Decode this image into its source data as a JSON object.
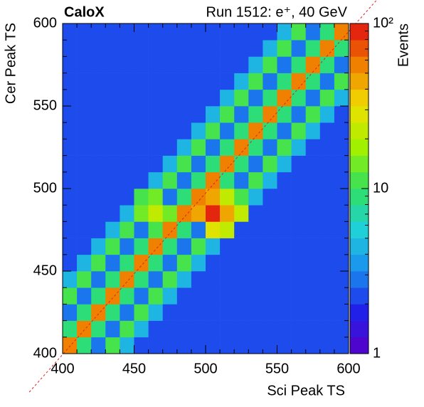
{
  "chart_data": {
    "type": "heatmap",
    "title": "CaloX",
    "subtitle": "Run 1512: e⁺, 40 GeV",
    "xlabel": "Sci Peak TS",
    "ylabel": "Cer Peak TS",
    "zlabel": "Events",
    "xlim": [
      400,
      600
    ],
    "ylim": [
      400,
      600
    ],
    "xticks": [
      400,
      450,
      500,
      550,
      600
    ],
    "yticks": [
      400,
      450,
      500,
      550,
      600
    ],
    "zlim": [
      1,
      100
    ],
    "zscale": "log",
    "zticks": [
      1,
      10,
      {
        "value": 100,
        "label": "10²"
      }
    ],
    "colorscale": [
      "#5a00c8",
      "#2020e8",
      "#1a8cf0",
      "#20d0d8",
      "#30e060",
      "#a0f000",
      "#f0e000",
      "#f08000",
      "#e01010"
    ],
    "xbins": [
      400,
      410,
      420,
      430,
      440,
      450,
      460,
      470,
      480,
      490,
      500,
      510,
      520,
      530,
      540,
      550,
      560,
      570,
      580,
      590,
      600
    ],
    "ybins": [
      400,
      410,
      420,
      430,
      440,
      450,
      460,
      470,
      480,
      490,
      500,
      510,
      520,
      530,
      540,
      550,
      560,
      570,
      580,
      590,
      600
    ],
    "z": [
      [
        60,
        8,
        3,
        12,
        5,
        2,
        2,
        2,
        2,
        2,
        2,
        2,
        2,
        2,
        2,
        2,
        2,
        2,
        2,
        2
      ],
      [
        8,
        60,
        8,
        3,
        12,
        5,
        2,
        2,
        2,
        2,
        2,
        2,
        2,
        2,
        2,
        2,
        2,
        2,
        2,
        2
      ],
      [
        3,
        8,
        60,
        8,
        3,
        12,
        5,
        2,
        2,
        2,
        2,
        2,
        2,
        2,
        2,
        2,
        2,
        2,
        2,
        2
      ],
      [
        12,
        3,
        8,
        60,
        8,
        3,
        12,
        5,
        2,
        2,
        2,
        2,
        2,
        2,
        2,
        2,
        2,
        2,
        2,
        2
      ],
      [
        5,
        12,
        3,
        8,
        60,
        8,
        3,
        12,
        5,
        2,
        2,
        2,
        2,
        2,
        2,
        2,
        2,
        2,
        2,
        2
      ],
      [
        2,
        5,
        12,
        3,
        8,
        60,
        8,
        3,
        12,
        5,
        2,
        2,
        2,
        2,
        2,
        2,
        2,
        2,
        2,
        2
      ],
      [
        2,
        2,
        5,
        12,
        3,
        8,
        60,
        8,
        3,
        12,
        5,
        2,
        2,
        2,
        2,
        2,
        2,
        2,
        2,
        2
      ],
      [
        2,
        2,
        2,
        5,
        12,
        3,
        12,
        60,
        8,
        3,
        30,
        25,
        2,
        2,
        2,
        2,
        2,
        2,
        2,
        2
      ],
      [
        2,
        2,
        2,
        2,
        5,
        15,
        20,
        15,
        60,
        40,
        80,
        50,
        20,
        2,
        2,
        2,
        2,
        2,
        2,
        2
      ],
      [
        2,
        2,
        2,
        2,
        2,
        12,
        15,
        3,
        8,
        60,
        50,
        20,
        12,
        5,
        2,
        2,
        2,
        2,
        2,
        2
      ],
      [
        2,
        2,
        2,
        2,
        2,
        2,
        5,
        12,
        3,
        8,
        60,
        8,
        3,
        12,
        5,
        2,
        2,
        2,
        2,
        2
      ],
      [
        2,
        2,
        2,
        2,
        2,
        2,
        2,
        5,
        12,
        3,
        8,
        60,
        8,
        3,
        12,
        5,
        2,
        2,
        2,
        2
      ],
      [
        2,
        2,
        2,
        2,
        2,
        2,
        2,
        2,
        5,
        12,
        3,
        8,
        60,
        8,
        3,
        12,
        5,
        2,
        2,
        2
      ],
      [
        2,
        2,
        2,
        2,
        2,
        2,
        2,
        2,
        2,
        5,
        12,
        3,
        8,
        60,
        8,
        3,
        12,
        5,
        2,
        2
      ],
      [
        2,
        2,
        2,
        2,
        2,
        2,
        2,
        2,
        2,
        2,
        5,
        12,
        3,
        8,
        60,
        8,
        3,
        12,
        5,
        2
      ],
      [
        2,
        2,
        2,
        2,
        2,
        2,
        2,
        2,
        2,
        2,
        2,
        5,
        12,
        3,
        8,
        60,
        8,
        3,
        12,
        5
      ],
      [
        2,
        2,
        2,
        2,
        2,
        2,
        2,
        2,
        2,
        2,
        2,
        2,
        5,
        12,
        3,
        8,
        60,
        8,
        3,
        12
      ],
      [
        2,
        2,
        2,
        2,
        2,
        2,
        2,
        2,
        2,
        2,
        2,
        2,
        2,
        5,
        12,
        3,
        8,
        60,
        8,
        3
      ],
      [
        2,
        2,
        2,
        2,
        2,
        2,
        2,
        2,
        2,
        2,
        2,
        2,
        2,
        2,
        5,
        12,
        3,
        8,
        60,
        8
      ],
      [
        2,
        2,
        2,
        2,
        2,
        2,
        2,
        2,
        2,
        2,
        2,
        2,
        2,
        2,
        2,
        5,
        12,
        3,
        8,
        60
      ]
    ]
  }
}
